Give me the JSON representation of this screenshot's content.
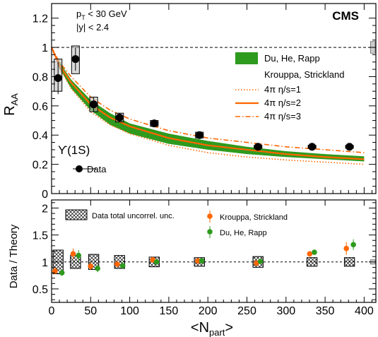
{
  "chart_data": [
    {
      "type": "scatter",
      "panel": "top",
      "xlabel_main": "<N",
      "xlabel_sub": "part",
      "xlabel_end": ">",
      "ylabel_main": "R",
      "ylabel_sub": "AA",
      "xlim": [
        0,
        415
      ],
      "ylim": [
        0,
        1.3
      ],
      "xticks": [
        0,
        50,
        100,
        150,
        200,
        250,
        300,
        350,
        400
      ],
      "yticks": [
        0,
        0.2,
        0.4,
        0.6,
        0.8,
        1,
        1.2
      ],
      "ytick_labels": [
        "0",
        "0.2",
        "0.4",
        "0.6",
        "0.8",
        "1",
        "1.2"
      ],
      "reference_line": 1,
      "experiment_label": "CMS",
      "cuts": [
        {
          "main": "p",
          "sub": "T",
          "rest": " < 30 GeV"
        },
        {
          "main": "|y| < 2.4",
          "sub": "",
          "rest": ""
        }
      ],
      "state_label": "ϒ(1S)",
      "global_unc_box": {
        "x": 409,
        "low": 0.96,
        "high": 1.04,
        "color": "#cccccc"
      },
      "data": {
        "name": "Data",
        "x": [
          8.3,
          30.6,
          53.9,
          87.0,
          131.4,
          189.2,
          264.2,
          333.3,
          381.2
        ],
        "y": [
          0.79,
          0.92,
          0.61,
          0.52,
          0.48,
          0.4,
          0.32,
          0.32,
          0.32
        ],
        "stat_err": [
          0.11,
          0.08,
          0.05,
          0.03,
          0.02,
          0.02,
          0.01,
          0.01,
          0.01
        ],
        "syst_box_low": [
          0.7,
          0.82,
          0.56,
          0.49,
          0.46,
          0.38,
          0.31,
          0.31,
          0.31
        ],
        "syst_box_high": [
          0.92,
          1.01,
          0.66,
          0.55,
          0.5,
          0.42,
          0.33,
          0.33,
          0.33
        ],
        "syst_box_halfwidth": 5
      },
      "theory": {
        "du_he_rapp": {
          "name": "Du, He, Rapp",
          "color": "#2e9a1e",
          "x": [
            0,
            10,
            25,
            50,
            75,
            100,
            150,
            200,
            250,
            300,
            350,
            400
          ],
          "low": [
            1.0,
            0.86,
            0.72,
            0.57,
            0.47,
            0.41,
            0.34,
            0.3,
            0.27,
            0.25,
            0.235,
            0.22
          ],
          "high": [
            1.0,
            0.9,
            0.78,
            0.64,
            0.55,
            0.48,
            0.41,
            0.36,
            0.32,
            0.29,
            0.27,
            0.255
          ]
        },
        "strickland_group": "Krouppa, Strickland",
        "strickland_color": "#ff6600",
        "strickland": [
          {
            "name": "4π η/s=1",
            "dash": "dotted",
            "x": [
              0,
              10,
              25,
              50,
              75,
              100,
              150,
              200,
              250,
              300,
              350,
              400
            ],
            "y": [
              1.0,
              0.86,
              0.72,
              0.56,
              0.47,
              0.41,
              0.33,
              0.28,
              0.25,
              0.23,
              0.215,
              0.2
            ]
          },
          {
            "name": "4π η/s=2",
            "dash": "solid",
            "x": [
              0,
              10,
              25,
              50,
              75,
              100,
              150,
              200,
              250,
              300,
              350,
              400
            ],
            "y": [
              1.0,
              0.88,
              0.76,
              0.61,
              0.52,
              0.46,
              0.38,
              0.33,
              0.3,
              0.27,
              0.25,
              0.235
            ]
          },
          {
            "name": "4π η/s=3",
            "dash": "dashdot",
            "x": [
              0,
              10,
              25,
              50,
              75,
              100,
              150,
              200,
              250,
              300,
              350,
              400
            ],
            "y": [
              1.0,
              0.9,
              0.8,
              0.66,
              0.57,
              0.51,
              0.43,
              0.38,
              0.35,
              0.32,
              0.3,
              0.28
            ]
          }
        ]
      }
    },
    {
      "type": "scatter",
      "panel": "bottom",
      "ylabel": "Data / Theory",
      "xlim": [
        0,
        415
      ],
      "ylim": [
        0.25,
        2.15
      ],
      "xticks": [
        0,
        50,
        100,
        150,
        200,
        250,
        300,
        350,
        400
      ],
      "xtick_labels": [
        "0",
        "50",
        "100",
        "150",
        "200",
        "250",
        "300",
        "350",
        "400"
      ],
      "yticks": [
        0.5,
        1,
        1.5,
        2
      ],
      "ytick_labels": [
        "0.5",
        "1",
        "1.5",
        "2"
      ],
      "reference_line": 1,
      "global_unc_box": {
        "x": 409,
        "low": 0.96,
        "high": 1.04
      },
      "uncorr_box": {
        "name": "Data total uncorrel. unc.",
        "x": [
          8.3,
          30.6,
          53.9,
          87.0,
          131.4,
          189.2,
          264.2,
          333.3,
          381.2
        ],
        "low": [
          0.78,
          0.88,
          0.86,
          0.88,
          0.91,
          0.92,
          0.9,
          0.92,
          0.92
        ],
        "high": [
          1.22,
          1.12,
          1.14,
          1.12,
          1.09,
          1.08,
          1.1,
          1.08,
          1.08
        ],
        "halfwidth": 6.5
      },
      "series": [
        {
          "name": "Krouppa, Strickland",
          "color": "#ff6600",
          "x": [
            4.3,
            27.6,
            49.9,
            84.0,
            129.4,
            187.2,
            262.2,
            330.3,
            377.2
          ],
          "y": [
            0.83,
            1.15,
            0.92,
            0.96,
            1.04,
            1.02,
            0.98,
            1.15,
            1.25
          ],
          "err": [
            0.06,
            0.1,
            0.07,
            0.05,
            0.05,
            0.05,
            0.05,
            0.05,
            0.12
          ]
        },
        {
          "name": "Du, He, Rapp",
          "color": "#2e9a1e",
          "x": [
            13.3,
            34.6,
            58.9,
            91.0,
            134.4,
            192.2,
            267.2,
            336.3,
            386.2
          ],
          "y": [
            0.8,
            1.12,
            0.88,
            0.93,
            1.0,
            1.02,
            1.01,
            1.18,
            1.32
          ],
          "err": [
            0.06,
            0.1,
            0.07,
            0.05,
            0.05,
            0.05,
            0.05,
            0.05,
            0.1
          ]
        }
      ]
    }
  ]
}
